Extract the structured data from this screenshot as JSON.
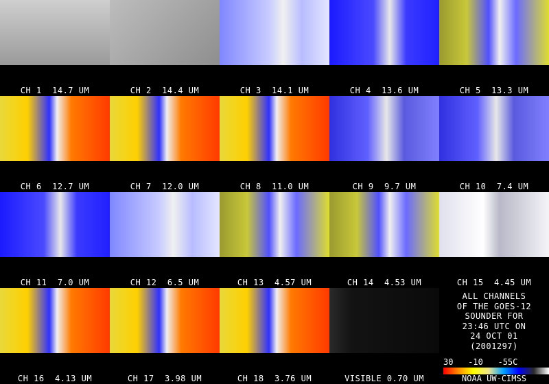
{
  "panels": [
    {
      "label": "CH 1  14.7 UM",
      "style": "gray-map"
    },
    {
      "label": "CH 2  14.4 UM",
      "style": "gray"
    },
    {
      "label": "CH 3  14.1 UM",
      "style": "pale-blue"
    },
    {
      "label": "CH 4  13.6 UM",
      "style": "blue"
    },
    {
      "label": "CH 5  13.3 UM",
      "style": "blue-yellow"
    },
    {
      "label": "CH 6  12.7 UM",
      "style": "warm"
    },
    {
      "label": "CH 7  12.0 UM",
      "style": "warm"
    },
    {
      "label": "CH 8  11.0 UM",
      "style": "warm"
    },
    {
      "label": "CH 9  9.7 UM",
      "style": "blue-light"
    },
    {
      "label": "CH 10  7.4 UM",
      "style": "blue-light"
    },
    {
      "label": "CH 11  7.0 UM",
      "style": "blue"
    },
    {
      "label": "CH 12  6.5 UM",
      "style": "pale-blue"
    },
    {
      "label": "CH 13  4.57 UM",
      "style": "blue-yellow"
    },
    {
      "label": "CH 14  4.53 UM",
      "style": "blue-yellow"
    },
    {
      "label": "CH 15  4.45 UM",
      "style": "white"
    },
    {
      "label": "CH 16  4.13 UM",
      "style": "warm"
    },
    {
      "label": "CH 17  3.98 UM",
      "style": "warm"
    },
    {
      "label": "CH 18  3.76 UM",
      "style": "warm"
    },
    {
      "label": "VISIBLE 0.70 UM",
      "style": "dark"
    }
  ],
  "info": {
    "lines": [
      "ALL CHANNELS",
      "OF THE GOES-12",
      "SOUNDER FOR",
      "23:46 UTC ON",
      "24 OCT 01",
      "(2001297)"
    ]
  },
  "scale": {
    "labels": "30   -10   -55C",
    "colors": [
      "#ff0000",
      "#ff8c00",
      "#ffff00",
      "#f0e68c",
      "#00a0ff",
      "#0000ff",
      "#2a2a2a",
      "#ffffff"
    ]
  },
  "credit": "NOAA UW-CIMSS"
}
